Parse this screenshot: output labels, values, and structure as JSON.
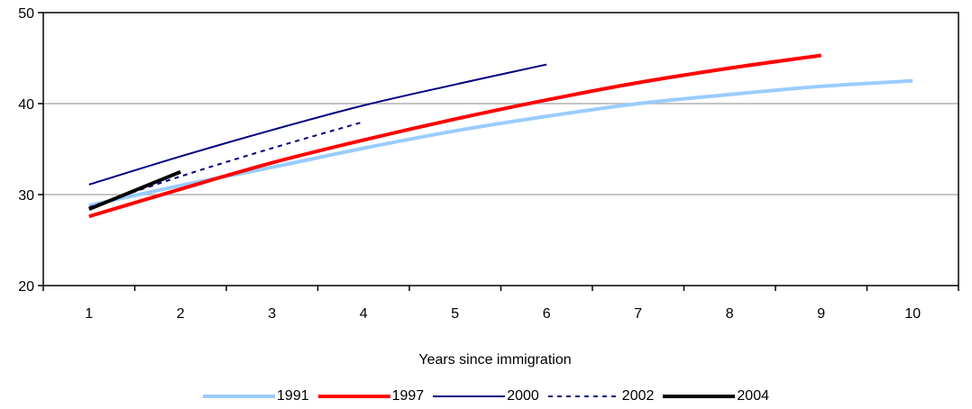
{
  "chart_data": {
    "type": "line",
    "title": "",
    "xlabel": "Years since immigration",
    "ylabel": "",
    "x": [
      1,
      2,
      3,
      4,
      5,
      6,
      7,
      8,
      9,
      10
    ],
    "xlim": [
      0.5,
      10.5
    ],
    "ylim": [
      20,
      50
    ],
    "yticks": [
      "20",
      "30",
      "40",
      "50"
    ],
    "xticks": [
      "1",
      "2",
      "3",
      "4",
      "5",
      "6",
      "7",
      "8",
      "9",
      "10"
    ],
    "grid": "horizontal",
    "legend_position": "bottom",
    "series": [
      {
        "name": "1991",
        "color": "#99ccff",
        "width": 4,
        "dash": "",
        "points": [
          [
            1,
            28.8
          ],
          [
            2,
            31.0
          ],
          [
            3,
            33.0
          ],
          [
            4,
            35.1
          ],
          [
            5,
            37.0
          ],
          [
            6,
            38.6
          ],
          [
            7,
            40.0
          ],
          [
            8,
            41.0
          ],
          [
            9,
            41.9
          ],
          [
            10,
            42.5
          ]
        ]
      },
      {
        "name": "1997",
        "color": "#ff0000",
        "width": 4,
        "dash": "",
        "points": [
          [
            1,
            27.6
          ],
          [
            2,
            30.6
          ],
          [
            3,
            33.5
          ],
          [
            4,
            36.0
          ],
          [
            5,
            38.3
          ],
          [
            6,
            40.4
          ],
          [
            7,
            42.3
          ],
          [
            8,
            43.9
          ],
          [
            9,
            45.3
          ]
        ]
      },
      {
        "name": "2000",
        "color": "#000080",
        "width": 2,
        "dash": "",
        "points": [
          [
            1,
            31.1
          ],
          [
            2,
            34.2
          ],
          [
            3,
            37.1
          ],
          [
            4,
            39.8
          ],
          [
            5,
            42.1
          ],
          [
            6,
            44.3
          ]
        ]
      },
      {
        "name": "2002",
        "color": "#000080",
        "width": 2,
        "dash": "5,5",
        "points": [
          [
            1,
            28.6
          ],
          [
            2,
            32.0
          ],
          [
            3,
            35.1
          ],
          [
            4,
            38.0
          ]
        ]
      },
      {
        "name": "2004",
        "color": "#000000",
        "width": 4,
        "dash": "",
        "points": [
          [
            1,
            28.4
          ],
          [
            2,
            32.5
          ]
        ]
      }
    ]
  }
}
